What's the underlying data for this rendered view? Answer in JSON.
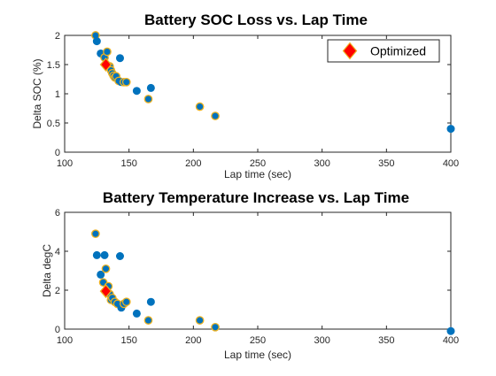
{
  "chart_data": [
    {
      "type": "scatter",
      "title": "Battery SOC Loss vs. Lap Time",
      "xlabel": "Lap time (sec)",
      "ylabel": "Delta SOC (%)",
      "xlim": [
        100,
        400
      ],
      "ylim": [
        0,
        2
      ],
      "xticks": [
        "100",
        "150",
        "200",
        "250",
        "300",
        "350",
        "400"
      ],
      "yticks": [
        "0",
        "0.5",
        "1",
        "1.5",
        "2"
      ],
      "grid": false,
      "legend_position": "top-right",
      "series": [
        {
          "name": "",
          "marker": "circle",
          "color": "#0072BD",
          "edge_color": "#EDB120",
          "points": [
            {
              "x": 124,
              "y": 2.0,
              "edged": true
            },
            {
              "x": 125,
              "y": 1.9,
              "edged": false
            },
            {
              "x": 128,
              "y": 1.69,
              "edged": false
            },
            {
              "x": 131,
              "y": 1.62,
              "edged": true
            },
            {
              "x": 133,
              "y": 1.72,
              "edged": true
            },
            {
              "x": 135,
              "y": 1.47,
              "edged": true
            },
            {
              "x": 136,
              "y": 1.4,
              "edged": true
            },
            {
              "x": 137,
              "y": 1.35,
              "edged": true
            },
            {
              "x": 138,
              "y": 1.31,
              "edged": true
            },
            {
              "x": 139,
              "y": 1.28,
              "edged": true
            },
            {
              "x": 140,
              "y": 1.3,
              "edged": true
            },
            {
              "x": 142,
              "y": 1.22,
              "edged": true
            },
            {
              "x": 143,
              "y": 1.61,
              "edged": false
            },
            {
              "x": 144,
              "y": 1.2,
              "edged": false
            },
            {
              "x": 146,
              "y": 1.2,
              "edged": true
            },
            {
              "x": 148,
              "y": 1.2,
              "edged": true
            },
            {
              "x": 156,
              "y": 1.05,
              "edged": false
            },
            {
              "x": 165,
              "y": 0.91,
              "edged": true
            },
            {
              "x": 167,
              "y": 1.1,
              "edged": false
            },
            {
              "x": 205,
              "y": 0.78,
              "edged": true
            },
            {
              "x": 217,
              "y": 0.62,
              "edged": true
            },
            {
              "x": 400,
              "y": 0.4,
              "edged": false
            }
          ]
        },
        {
          "name": "Optimized",
          "marker": "diamond",
          "color": "#FF0000",
          "edge_color": "#EDB120",
          "points": [
            {
              "x": 132,
              "y": 1.5
            }
          ]
        }
      ]
    },
    {
      "type": "scatter",
      "title": "Battery Temperature Increase vs. Lap Time",
      "xlabel": "Lap time (sec)",
      "ylabel": "Delta degC",
      "xlim": [
        100,
        400
      ],
      "ylim": [
        0,
        6
      ],
      "xticks": [
        "100",
        "150",
        "200",
        "250",
        "300",
        "350",
        "400"
      ],
      "yticks": [
        "0",
        "2",
        "4",
        "6"
      ],
      "grid": false,
      "series": [
        {
          "name": "",
          "marker": "circle",
          "color": "#0072BD",
          "edge_color": "#EDB120",
          "points": [
            {
              "x": 124,
              "y": 4.9,
              "edged": true
            },
            {
              "x": 125,
              "y": 3.8,
              "edged": false
            },
            {
              "x": 128,
              "y": 2.8,
              "edged": false
            },
            {
              "x": 130,
              "y": 2.4,
              "edged": true
            },
            {
              "x": 131,
              "y": 3.8,
              "edged": false
            },
            {
              "x": 132,
              "y": 3.1,
              "edged": true
            },
            {
              "x": 134,
              "y": 2.2,
              "edged": true
            },
            {
              "x": 135,
              "y": 1.8,
              "edged": true
            },
            {
              "x": 136,
              "y": 1.5,
              "edged": true
            },
            {
              "x": 137,
              "y": 1.6,
              "edged": true
            },
            {
              "x": 139,
              "y": 1.4,
              "edged": true
            },
            {
              "x": 141,
              "y": 1.3,
              "edged": true
            },
            {
              "x": 143,
              "y": 3.75,
              "edged": false
            },
            {
              "x": 144,
              "y": 1.1,
              "edged": false
            },
            {
              "x": 146,
              "y": 1.3,
              "edged": true
            },
            {
              "x": 148,
              "y": 1.4,
              "edged": true
            },
            {
              "x": 156,
              "y": 0.8,
              "edged": false
            },
            {
              "x": 165,
              "y": 0.45,
              "edged": true
            },
            {
              "x": 167,
              "y": 1.4,
              "edged": false
            },
            {
              "x": 205,
              "y": 0.45,
              "edged": true
            },
            {
              "x": 217,
              "y": 0.1,
              "edged": true
            },
            {
              "x": 400,
              "y": -0.1,
              "edged": false
            }
          ]
        },
        {
          "name": "Optimized",
          "marker": "diamond",
          "color": "#FF0000",
          "edge_color": "#EDB120",
          "points": [
            {
              "x": 132,
              "y": 1.95
            }
          ]
        }
      ]
    }
  ]
}
